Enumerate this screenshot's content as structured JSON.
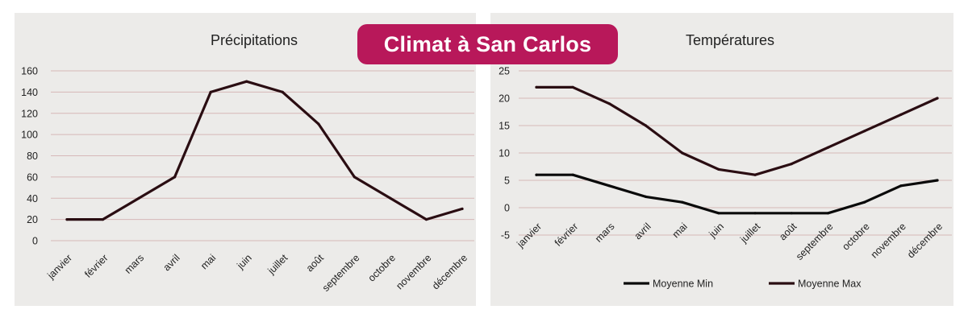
{
  "banner": {
    "title": "Climat à San Carlos",
    "color": "#b8185a"
  },
  "chart_data": [
    {
      "type": "line",
      "title": "Précipitations",
      "categories": [
        "janvier",
        "février",
        "mars",
        "avril",
        "mai",
        "juin",
        "juillet",
        "août",
        "septembre",
        "octobre",
        "novembre",
        "décembre"
      ],
      "series": [
        {
          "values": [
            20,
            20,
            40,
            60,
            140,
            150,
            140,
            110,
            60,
            40,
            20,
            30
          ],
          "color": "#2a0d12"
        }
      ],
      "ylim": [
        0,
        160
      ],
      "yticks": [
        0,
        20,
        40,
        60,
        80,
        100,
        120,
        140,
        160
      ],
      "grid": true,
      "legend": "none"
    },
    {
      "type": "line",
      "title": "Températures",
      "categories": [
        "janvier",
        "février",
        "mars",
        "avril",
        "mai",
        "juin",
        "juillet",
        "août",
        "septembre",
        "octobre",
        "novembre",
        "décembre"
      ],
      "series": [
        {
          "name": "Moyenne Min",
          "values": [
            6,
            6,
            4,
            2,
            1,
            -1,
            -1,
            -1,
            -1,
            1,
            4,
            5
          ],
          "color": "#0a0a0a"
        },
        {
          "name": "Moyenne Max",
          "values": [
            22,
            22,
            19,
            15,
            10,
            7,
            6,
            8,
            11,
            14,
            17,
            20
          ],
          "color": "#2a0d12"
        }
      ],
      "ylim": [
        -5,
        25
      ],
      "yticks": [
        -5,
        0,
        5,
        10,
        15,
        20,
        25
      ],
      "grid": true,
      "legend": "bottom"
    }
  ]
}
